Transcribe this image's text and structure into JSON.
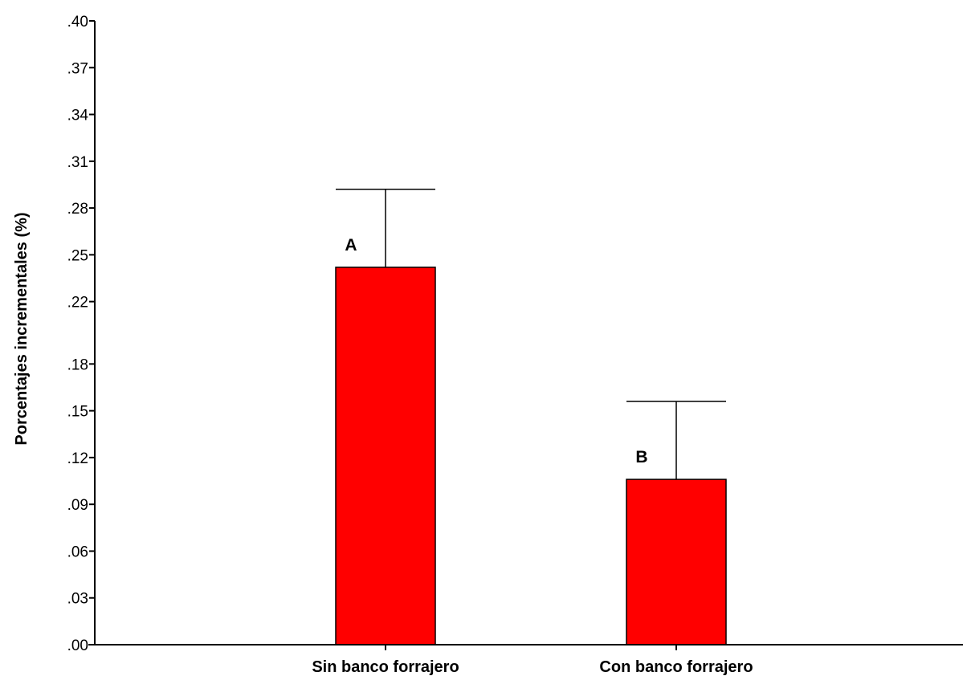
{
  "chart_data": {
    "type": "bar",
    "categories": [
      "Sin banco forrajero",
      "Con banco forrajero"
    ],
    "values": [
      0.242,
      0.106
    ],
    "error_upper": [
      0.292,
      0.156
    ],
    "annotations": [
      "A",
      "B"
    ],
    "ylabel": "Porcentajes incrementales  (%)",
    "xlabel": "",
    "ylim": [
      0.0,
      0.4
    ],
    "yticks": [
      0.0,
      0.03,
      0.06,
      0.09,
      0.12,
      0.15,
      0.18,
      0.22,
      0.25,
      0.28,
      0.31,
      0.34,
      0.37,
      0.4
    ],
    "ytick_labels": [
      ".00",
      ".03",
      ".06",
      ".09",
      ".12",
      ".15",
      ".18",
      ".22",
      ".25",
      ".28",
      ".31",
      ".34",
      ".37",
      ".40"
    ],
    "bar_color": "#ff0000",
    "grid": false,
    "legend": "none"
  }
}
